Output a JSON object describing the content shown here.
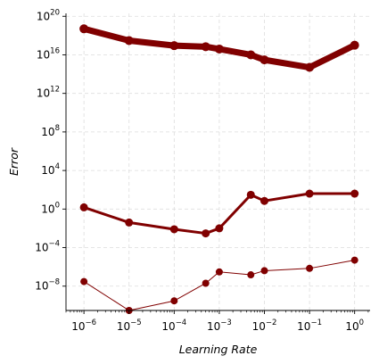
{
  "chart_data": {
    "type": "line",
    "title": "",
    "xlabel": "Learning Rate",
    "ylabel": "Error",
    "xscale": "log",
    "yscale": "log",
    "xlim": [
      4e-07,
      2.2
    ],
    "ylim": [
      3e-11,
      2e+20
    ],
    "grid": true,
    "legend": "none",
    "x_ticks": [
      {
        "base": "10",
        "exp": "−6",
        "value": 1e-06
      },
      {
        "base": "10",
        "exp": "−5",
        "value": 1e-05
      },
      {
        "base": "10",
        "exp": "−4",
        "value": 0.0001
      },
      {
        "base": "10",
        "exp": "−3",
        "value": 0.001
      },
      {
        "base": "10",
        "exp": "−2",
        "value": 0.01
      },
      {
        "base": "10",
        "exp": "−1",
        "value": 0.1
      },
      {
        "base": "10",
        "exp": "0",
        "value": 1
      }
    ],
    "y_ticks": [
      {
        "base": "10",
        "exp": "−8",
        "value": 1e-08
      },
      {
        "base": "10",
        "exp": "−4",
        "value": 0.0001
      },
      {
        "base": "10",
        "exp": "0",
        "value": 1
      },
      {
        "base": "10",
        "exp": "4",
        "value": 10000.0
      },
      {
        "base": "10",
        "exp": "8",
        "value": 100000000.0
      },
      {
        "base": "10",
        "exp": "12",
        "value": 1000000000000.0
      },
      {
        "base": "10",
        "exp": "16",
        "value": 1e+16
      },
      {
        "base": "10",
        "exp": "20",
        "value": 1e+20
      }
    ],
    "x": [
      1e-06,
      1e-05,
      0.0001,
      0.0005,
      0.001,
      0.005,
      0.01,
      0.1,
      1
    ],
    "series": [
      {
        "color": "#800000",
        "line_width": 1,
        "marker_r": 4,
        "values": [
          3e-08,
          3e-11,
          3e-10,
          2e-08,
          3e-07,
          1.5e-07,
          4e-07,
          7e-07,
          5e-06
        ]
      },
      {
        "color": "#800000",
        "line_width": 3,
        "marker_r": 4.5,
        "values": [
          1.5,
          0.04,
          0.008,
          0.003,
          0.01,
          30,
          7,
          40,
          40
        ]
      },
      {
        "color": "#800000",
        "line_width": 7,
        "marker_r": 5,
        "values": [
          5e+18,
          3e+17,
          9e+16,
          7e+16,
          4e+16,
          1e+16,
          3000000000000000.0,
          500000000000000.0,
          1e+17
        ]
      }
    ]
  }
}
